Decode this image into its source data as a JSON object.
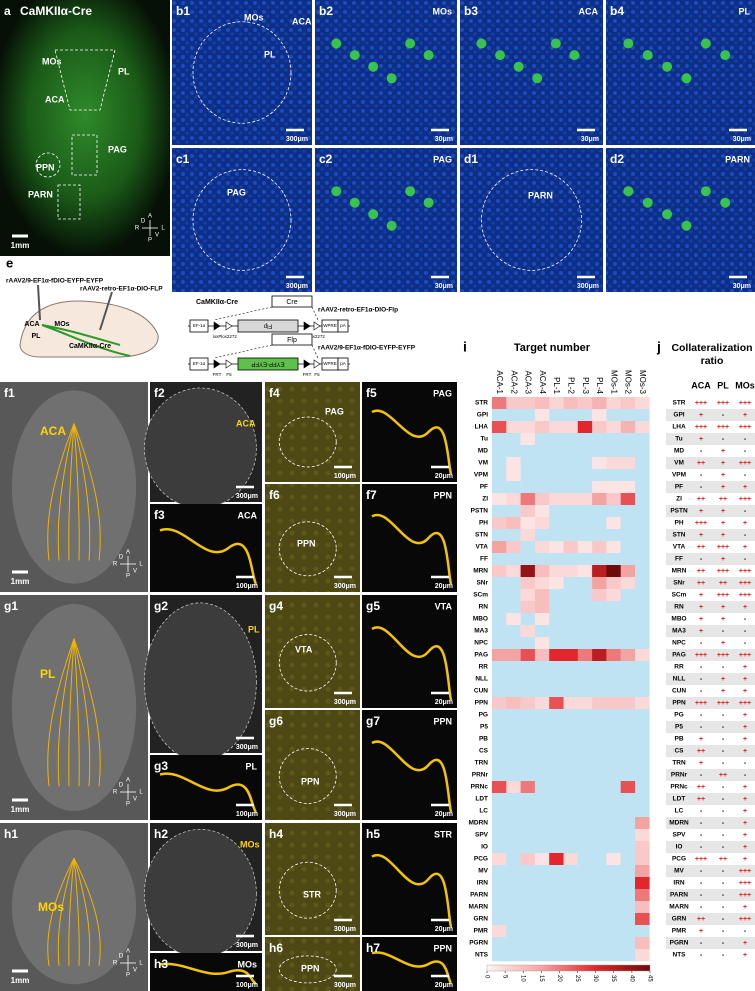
{
  "compass": [
    "A",
    "R",
    "L",
    "P",
    "D",
    "V"
  ],
  "panels": {
    "a": {
      "label": "a",
      "title": "CaMKIIα-Cre",
      "regions": [
        "MOs",
        "PL",
        "ACA",
        "PAG",
        "PPN",
        "PARN"
      ],
      "scale": "1mm"
    },
    "b1": {
      "label": "b1",
      "regions": [
        "MOs",
        "ACA",
        "PL"
      ],
      "scale": "300μm"
    },
    "b2": {
      "label": "b2",
      "regions": [
        "MOs"
      ],
      "scale": "30μm"
    },
    "b3": {
      "label": "b3",
      "regions": [
        "ACA"
      ],
      "scale": "30μm"
    },
    "b4": {
      "label": "b4",
      "regions": [
        "PL"
      ],
      "scale": "30μm"
    },
    "c1": {
      "label": "c1",
      "regions": [
        "PAG"
      ],
      "scale": "300μm"
    },
    "c2": {
      "label": "c2",
      "regions": [
        "PAG"
      ],
      "scale": "30μm"
    },
    "d1": {
      "label": "d1",
      "regions": [
        "PARN"
      ],
      "scale": "300μm"
    },
    "d2": {
      "label": "d2",
      "regions": [
        "PARN"
      ],
      "scale": "30μm"
    },
    "f1": {
      "label": "f1",
      "regions": [
        "ACA"
      ],
      "scale": "1mm"
    },
    "f2": {
      "label": "f2",
      "regions": [
        "ACA"
      ],
      "scale": "300μm"
    },
    "f3": {
      "label": "f3",
      "regions": [
        "ACA"
      ],
      "scale": "100μm"
    },
    "f4": {
      "label": "f4",
      "regions": [
        "PAG"
      ],
      "scale": "100μm"
    },
    "f5": {
      "label": "f5",
      "regions": [
        "PAG"
      ],
      "scale": "20μm"
    },
    "f6": {
      "label": "f6",
      "regions": [
        "PPN"
      ],
      "scale": "300μm"
    },
    "f7": {
      "label": "f7",
      "regions": [
        "PPN"
      ],
      "scale": "20μm"
    },
    "g1": {
      "label": "g1",
      "regions": [
        "PL"
      ],
      "scale": "1mm"
    },
    "g2": {
      "label": "g2",
      "regions": [
        "PL"
      ],
      "scale": "300μm"
    },
    "g3": {
      "label": "g3",
      "regions": [
        "PL"
      ],
      "scale": "100μm"
    },
    "g4": {
      "label": "g4",
      "regions": [
        "VTA"
      ],
      "scale": "300μm"
    },
    "g5": {
      "label": "g5",
      "regions": [
        "VTA"
      ],
      "scale": "20μm"
    },
    "g6": {
      "label": "g6",
      "regions": [
        "PPN"
      ],
      "scale": "300μm"
    },
    "g7": {
      "label": "g7",
      "regions": [
        "PPN"
      ],
      "scale": "20μm"
    },
    "h1": {
      "label": "h1",
      "regions": [
        "MOs"
      ],
      "scale": "1mm"
    },
    "h2": {
      "label": "h2",
      "regions": [
        "MOs"
      ],
      "scale": "300μm"
    },
    "h3": {
      "label": "h3",
      "regions": [
        "MOs"
      ],
      "scale": "100μm"
    },
    "h4": {
      "label": "h4",
      "regions": [
        "STR"
      ],
      "scale": "300μm"
    },
    "h5": {
      "label": "h5",
      "regions": [
        "STR"
      ],
      "scale": "20μm"
    },
    "h6": {
      "label": "h6",
      "regions": [
        "PPN"
      ],
      "scale": "300μm"
    },
    "h7": {
      "label": "h7",
      "regions": [
        "PPN"
      ],
      "scale": "20μm"
    }
  },
  "e": {
    "label": "e",
    "injections": [
      "rAAV2/9-EF1α-fDIO-EYFP-EYFP",
      "rAAV2-retro-EF1α-DIO-FLP"
    ],
    "regions": [
      "ACA",
      "MOs",
      "PL"
    ],
    "mouse": "CaMKIIα-Cre",
    "construct1": {
      "driver": "CaMKIIα-Cre",
      "enzyme": "Cre",
      "name": "rAAV2-retro-EF1α-DIO-Flp",
      "parts": [
        "EF-1α",
        "Flp",
        "WPRE",
        "pA"
      ],
      "sites": [
        "loxP",
        "lox2272",
        "loxP",
        "lox2272"
      ]
    },
    "construct2": {
      "enzyme": "Flp",
      "name": "rAAV2/9-EF1α-fDIO-EYFP-EYFP",
      "parts": [
        "EF-1α",
        "EYFP-EYFP",
        "WPRE",
        "pA"
      ],
      "sites": [
        "FRT",
        "F5",
        "FRT",
        "F5"
      ]
    }
  },
  "chart_data": {
    "type": "heatmap",
    "label": "i",
    "title": "Target number",
    "x": [
      "ACA-1",
      "ACA-2",
      "ACA-3",
      "ACA-4",
      "PL-1",
      "PL-2",
      "PL-3",
      "PL-4",
      "MOs-1",
      "MOs-2",
      "MOs-3"
    ],
    "y": [
      "STR",
      "GPI",
      "LHA",
      "Tu",
      "MD",
      "VM",
      "VPM",
      "PF",
      "ZI",
      "PSTN",
      "PH",
      "STN",
      "VTA",
      "FF",
      "MRN",
      "SNr",
      "SCm",
      "RN",
      "MBO",
      "MA3",
      "NPC",
      "PAG",
      "RR",
      "NLL",
      "CUN",
      "PPN",
      "PG",
      "P5",
      "PB",
      "CS",
      "TRN",
      "PRNr",
      "PRNc",
      "LDT",
      "LC",
      "MDRN",
      "SPV",
      "IO",
      "PCG",
      "MV",
      "IRN",
      "PARN",
      "MARN",
      "GRN",
      "PMR",
      "PGRN",
      "NTS"
    ],
    "values": [
      [
        20,
        8,
        8,
        10,
        6,
        10,
        8,
        12,
        6,
        8,
        5
      ],
      [
        0,
        0,
        0,
        3,
        0,
        0,
        0,
        3,
        0,
        0,
        0
      ],
      [
        25,
        5,
        5,
        8,
        5,
        5,
        30,
        8,
        5,
        12,
        5
      ],
      [
        0,
        0,
        3,
        0,
        0,
        0,
        0,
        0,
        0,
        0,
        0
      ],
      [
        0,
        0,
        0,
        0,
        0,
        0,
        0,
        0,
        0,
        0,
        0
      ],
      [
        0,
        3,
        0,
        0,
        0,
        0,
        0,
        3,
        5,
        5,
        0
      ],
      [
        0,
        3,
        0,
        0,
        0,
        0,
        0,
        0,
        0,
        0,
        0
      ],
      [
        0,
        0,
        0,
        0,
        0,
        0,
        0,
        3,
        3,
        3,
        0
      ],
      [
        3,
        5,
        20,
        8,
        5,
        5,
        5,
        15,
        8,
        25,
        0
      ],
      [
        0,
        0,
        8,
        3,
        0,
        0,
        0,
        0,
        0,
        0,
        0
      ],
      [
        8,
        10,
        3,
        5,
        0,
        0,
        0,
        0,
        3,
        0,
        0
      ],
      [
        0,
        0,
        5,
        0,
        0,
        0,
        0,
        0,
        0,
        0,
        0
      ],
      [
        15,
        8,
        0,
        5,
        3,
        8,
        3,
        8,
        3,
        0,
        0
      ],
      [
        0,
        0,
        0,
        0,
        0,
        0,
        0,
        0,
        0,
        0,
        0
      ],
      [
        8,
        5,
        40,
        10,
        5,
        5,
        3,
        35,
        45,
        15,
        0
      ],
      [
        0,
        0,
        8,
        5,
        3,
        0,
        0,
        15,
        8,
        5,
        0
      ],
      [
        0,
        0,
        5,
        10,
        0,
        0,
        0,
        8,
        5,
        0,
        0
      ],
      [
        0,
        0,
        8,
        10,
        0,
        0,
        0,
        0,
        0,
        0,
        0
      ],
      [
        0,
        3,
        0,
        3,
        0,
        0,
        0,
        0,
        0,
        0,
        0
      ],
      [
        0,
        0,
        5,
        0,
        0,
        0,
        0,
        0,
        0,
        0,
        0
      ],
      [
        0,
        0,
        0,
        3,
        0,
        0,
        0,
        0,
        0,
        0,
        0
      ],
      [
        15,
        15,
        25,
        10,
        30,
        30,
        20,
        35,
        20,
        15,
        5
      ],
      [
        0,
        0,
        0,
        0,
        0,
        0,
        0,
        0,
        0,
        0,
        0
      ],
      [
        0,
        0,
        0,
        0,
        0,
        0,
        0,
        0,
        0,
        0,
        0
      ],
      [
        0,
        0,
        0,
        0,
        0,
        0,
        0,
        0,
        0,
        0,
        0
      ],
      [
        8,
        10,
        8,
        5,
        25,
        5,
        5,
        8,
        8,
        8,
        5
      ],
      [
        0,
        0,
        0,
        0,
        0,
        0,
        0,
        0,
        0,
        0,
        0
      ],
      [
        0,
        0,
        0,
        0,
        0,
        0,
        0,
        0,
        0,
        0,
        0
      ],
      [
        0,
        0,
        0,
        0,
        0,
        0,
        0,
        0,
        0,
        0,
        0
      ],
      [
        0,
        0,
        0,
        0,
        0,
        0,
        0,
        0,
        0,
        0,
        0
      ],
      [
        0,
        0,
        0,
        0,
        0,
        0,
        0,
        0,
        0,
        0,
        0
      ],
      [
        0,
        0,
        0,
        0,
        0,
        0,
        0,
        0,
        0,
        0,
        0
      ],
      [
        25,
        5,
        20,
        0,
        0,
        0,
        0,
        0,
        0,
        25,
        0
      ],
      [
        0,
        0,
        0,
        0,
        0,
        0,
        0,
        0,
        0,
        0,
        0
      ],
      [
        0,
        0,
        0,
        0,
        0,
        0,
        0,
        0,
        0,
        0,
        0
      ],
      [
        0,
        0,
        0,
        0,
        0,
        0,
        0,
        0,
        0,
        0,
        15
      ],
      [
        0,
        0,
        0,
        0,
        0,
        0,
        0,
        0,
        0,
        0,
        5
      ],
      [
        0,
        0,
        0,
        0,
        0,
        0,
        0,
        0,
        0,
        0,
        8
      ],
      [
        5,
        0,
        8,
        3,
        30,
        5,
        0,
        0,
        3,
        0,
        8
      ],
      [
        0,
        0,
        0,
        0,
        0,
        0,
        0,
        0,
        0,
        0,
        15
      ],
      [
        0,
        0,
        0,
        0,
        0,
        0,
        0,
        0,
        0,
        0,
        30
      ],
      [
        0,
        0,
        0,
        0,
        0,
        0,
        0,
        0,
        0,
        0,
        20
      ],
      [
        0,
        0,
        0,
        0,
        0,
        0,
        0,
        0,
        0,
        0,
        10
      ],
      [
        0,
        0,
        0,
        0,
        0,
        0,
        0,
        0,
        0,
        0,
        25
      ],
      [
        5,
        0,
        0,
        0,
        0,
        0,
        0,
        0,
        0,
        0,
        0
      ],
      [
        0,
        0,
        0,
        0,
        0,
        0,
        0,
        0,
        0,
        0,
        10
      ],
      [
        0,
        0,
        0,
        0,
        0,
        0,
        0,
        0,
        0,
        0,
        5
      ]
    ],
    "clim": [
      0,
      45
    ],
    "cticks": [
      0,
      5,
      10,
      15,
      20,
      25,
      30,
      35,
      40,
      45
    ],
    "zero_color": "#bfe3f3",
    "colormap": [
      "#fff4f4",
      "#f4a3a3",
      "#e3262b",
      "#6e0a0a"
    ]
  },
  "table": {
    "label": "j",
    "title": [
      "Collateralization",
      "ratio"
    ],
    "columns": [
      "ACA",
      "PL",
      "MOs"
    ],
    "rows": [
      [
        "STR",
        "+++",
        "+++",
        "+++"
      ],
      [
        "GPI",
        "+",
        "-",
        "+"
      ],
      [
        "LHA",
        "+++",
        "+++",
        "+++"
      ],
      [
        "Tu",
        "+",
        "-",
        "-"
      ],
      [
        "MD",
        "-",
        "+",
        "-"
      ],
      [
        "VM",
        "++",
        "+",
        "+++"
      ],
      [
        "VPM",
        "-",
        "+",
        "-"
      ],
      [
        "PF",
        "-",
        "+",
        "+"
      ],
      [
        "ZI",
        "++",
        "++",
        "+++"
      ],
      [
        "PSTN",
        "+",
        "+",
        "-"
      ],
      [
        "PH",
        "+++",
        "+",
        "+"
      ],
      [
        "STN",
        "+",
        "+",
        "-"
      ],
      [
        "VTA",
        "++",
        "+++",
        "+"
      ],
      [
        "FF",
        "-",
        "+",
        "-"
      ],
      [
        "MRN",
        "++",
        "+++",
        "+++"
      ],
      [
        "SNr",
        "++",
        "++",
        "+++"
      ],
      [
        "SCm",
        "+",
        "+++",
        "+++"
      ],
      [
        "RN",
        "+",
        "+",
        "+"
      ],
      [
        "MBO",
        "+",
        "+",
        "-"
      ],
      [
        "MA3",
        "+",
        "-",
        "-"
      ],
      [
        "NPC",
        "-",
        "+",
        "-"
      ],
      [
        "PAG",
        "+++",
        "+++",
        "+++"
      ],
      [
        "RR",
        "-",
        "-",
        "+"
      ],
      [
        "NLL",
        "-",
        "+",
        "+"
      ],
      [
        "CUN",
        "-",
        "+",
        "+"
      ],
      [
        "PPN",
        "+++",
        "+++",
        "+++"
      ],
      [
        "PG",
        "-",
        "-",
        "+"
      ],
      [
        "P5",
        "-",
        "-",
        "+"
      ],
      [
        "PB",
        "+",
        "-",
        "+"
      ],
      [
        "CS",
        "++",
        "-",
        "+"
      ],
      [
        "TRN",
        "+",
        "-",
        "-"
      ],
      [
        "PRNr",
        "-",
        "++",
        "-"
      ],
      [
        "PRNc",
        "++",
        "-",
        "+"
      ],
      [
        "LDT",
        "++",
        "-",
        "+"
      ],
      [
        "LC",
        "-",
        "-",
        "+"
      ],
      [
        "MDRN",
        "-",
        "-",
        "+"
      ],
      [
        "SPV",
        "-",
        "-",
        "+"
      ],
      [
        "IO",
        "-",
        "-",
        "+"
      ],
      [
        "PCG",
        "+++",
        "++",
        "+"
      ],
      [
        "MV",
        "-",
        "-",
        "+++"
      ],
      [
        "IRN",
        "-",
        "-",
        "+++"
      ],
      [
        "PARN",
        "-",
        "-",
        "+++"
      ],
      [
        "MARN",
        "-",
        "-",
        "+"
      ],
      [
        "GRN",
        "++",
        "-",
        "+++"
      ],
      [
        "PMR",
        "+",
        "-",
        "-"
      ],
      [
        "PGRN",
        "-",
        "-",
        "+"
      ],
      [
        "NTS",
        "-",
        "-",
        "+"
      ]
    ]
  }
}
